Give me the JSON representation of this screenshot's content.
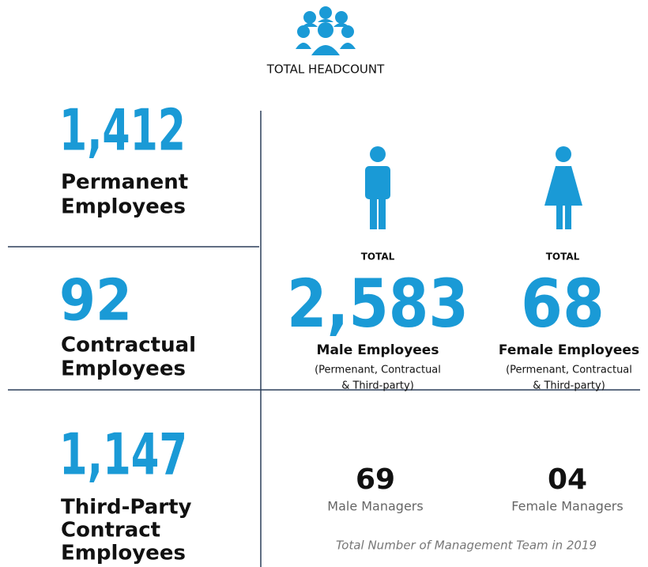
{
  "header": {
    "title": "TOTAL HEADCOUNT"
  },
  "left": [
    {
      "value": "1,412",
      "label": [
        "Permanent",
        "Employees"
      ]
    },
    {
      "value": "92",
      "label": [
        "Contractual",
        "Employees"
      ]
    },
    {
      "value": "1,147",
      "label": [
        "Third-Party",
        "Contract",
        "Employees"
      ]
    }
  ],
  "gender": [
    {
      "caption": "TOTAL",
      "value": "2,583",
      "label": "Male Employees",
      "note": [
        "(Permenant, Contractual",
        "& Third-party)"
      ]
    },
    {
      "caption": "TOTAL",
      "value": "68",
      "label": "Female Employees",
      "note": [
        "(Permenant, Contractual",
        "& Third-party)"
      ]
    }
  ],
  "managers": {
    "items": [
      {
        "value": "69",
        "label": "Male Managers"
      },
      {
        "value": "04",
        "label": "Female Managers"
      }
    ],
    "footnote": "Total Number of Management Team in 2019"
  }
}
